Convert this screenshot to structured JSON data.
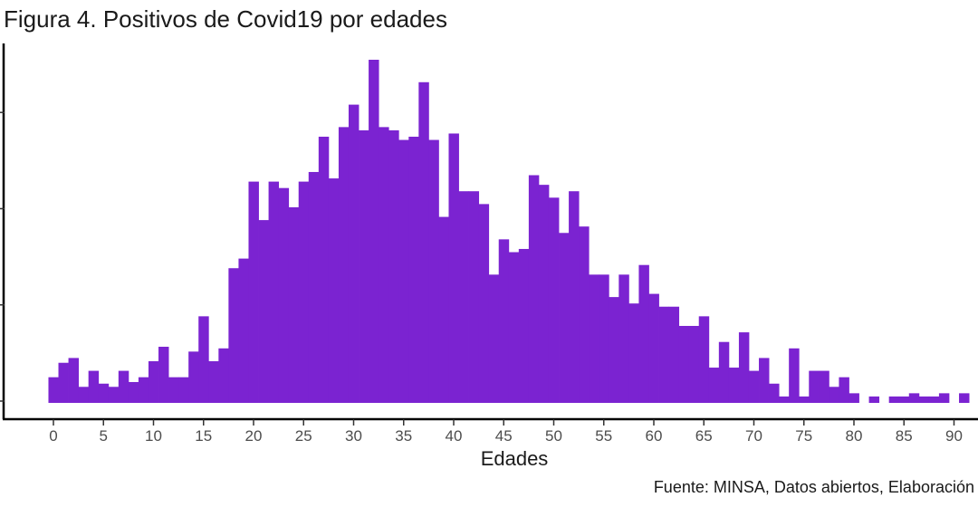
{
  "chart_data": {
    "type": "bar",
    "title": "Figura 4. Positivos de Covid19 por edades",
    "xlabel": "Edades",
    "ylabel": "",
    "caption": "Fuente: MINSA, Datos abiertos, Elaboración",
    "bar_color": "#7b23d1",
    "grid": false,
    "x_ticks": [
      0,
      5,
      10,
      15,
      20,
      25,
      30,
      35,
      40,
      45,
      50,
      55,
      60,
      65,
      70,
      75,
      80,
      85,
      90
    ],
    "xlim": [
      -0.5,
      92
    ],
    "ylim": [
      0,
      108
    ],
    "x": [
      0,
      1,
      2,
      3,
      4,
      5,
      6,
      7,
      8,
      9,
      10,
      11,
      12,
      13,
      14,
      15,
      16,
      17,
      18,
      19,
      20,
      21,
      22,
      23,
      24,
      25,
      26,
      27,
      28,
      29,
      30,
      31,
      32,
      33,
      34,
      35,
      36,
      37,
      38,
      39,
      40,
      41,
      42,
      43,
      44,
      45,
      46,
      47,
      48,
      49,
      50,
      51,
      52,
      53,
      54,
      55,
      56,
      57,
      58,
      59,
      60,
      61,
      62,
      63,
      64,
      65,
      66,
      67,
      68,
      69,
      70,
      71,
      72,
      73,
      74,
      75,
      76,
      77,
      78,
      79,
      80,
      81,
      82,
      83,
      84,
      85,
      86,
      87,
      88,
      89,
      90,
      91,
      92
    ],
    "values": [
      8,
      12.5,
      14,
      5,
      10,
      6,
      5,
      10,
      6.5,
      8,
      13,
      17.5,
      8,
      8,
      16,
      27,
      13,
      17,
      42,
      45,
      69,
      57,
      69,
      67,
      61,
      69,
      72,
      83,
      70,
      86,
      93,
      85,
      107,
      86,
      85,
      82,
      83,
      100,
      82,
      58,
      84,
      66,
      66,
      62,
      40,
      51,
      47,
      48,
      71,
      68,
      64,
      53,
      66,
      55,
      40,
      40,
      33,
      40,
      31,
      43,
      34,
      30,
      30,
      24,
      24,
      27,
      11,
      19,
      11,
      22,
      10,
      14,
      6,
      2,
      17,
      2,
      10,
      10,
      5,
      8,
      3,
      0,
      2,
      0,
      2,
      2,
      3,
      2,
      2,
      3,
      0,
      3,
      0
    ]
  }
}
